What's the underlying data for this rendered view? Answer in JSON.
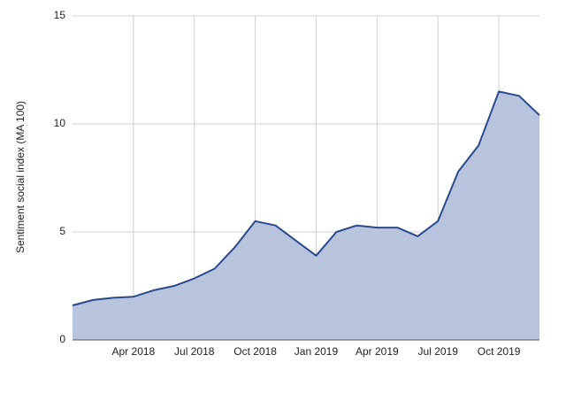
{
  "chart_data": {
    "type": "area",
    "y_label": "Sentiment social index (MA 100)",
    "x": [
      "2018-01",
      "2018-02",
      "2018-03",
      "2018-04",
      "2018-05",
      "2018-06",
      "2018-07",
      "2018-08",
      "2018-09",
      "2018-10",
      "2018-11",
      "2018-12",
      "2019-01",
      "2019-02",
      "2019-03",
      "2019-04",
      "2019-05",
      "2019-06",
      "2019-07",
      "2019-08",
      "2019-09",
      "2019-10",
      "2019-11",
      "2019-12"
    ],
    "values": [
      1.6,
      1.85,
      1.95,
      2.0,
      2.3,
      2.5,
      2.85,
      3.3,
      4.3,
      5.5,
      5.3,
      4.6,
      3.9,
      5.0,
      5.3,
      5.2,
      5.2,
      4.8,
      5.5,
      7.8,
      9.0,
      11.5,
      11.3,
      10.4
    ],
    "xlim": [
      "2018-01",
      "2019-12"
    ],
    "xticks": [
      {
        "value": "2018-04",
        "label": "Apr 2018"
      },
      {
        "value": "2018-07",
        "label": "Jul 2018"
      },
      {
        "value": "2018-10",
        "label": "Oct 2018"
      },
      {
        "value": "2019-01",
        "label": "Jan 2019"
      },
      {
        "value": "2019-04",
        "label": "Apr 2019"
      },
      {
        "value": "2019-07",
        "label": "Jul 2019"
      },
      {
        "value": "2019-10",
        "label": "Oct 2019"
      }
    ],
    "ylim": [
      0,
      15
    ],
    "yticks": [
      0,
      5,
      10,
      15
    ],
    "grid": true,
    "color": "#2b4a8b",
    "fill_color": "#b8c4dd"
  }
}
